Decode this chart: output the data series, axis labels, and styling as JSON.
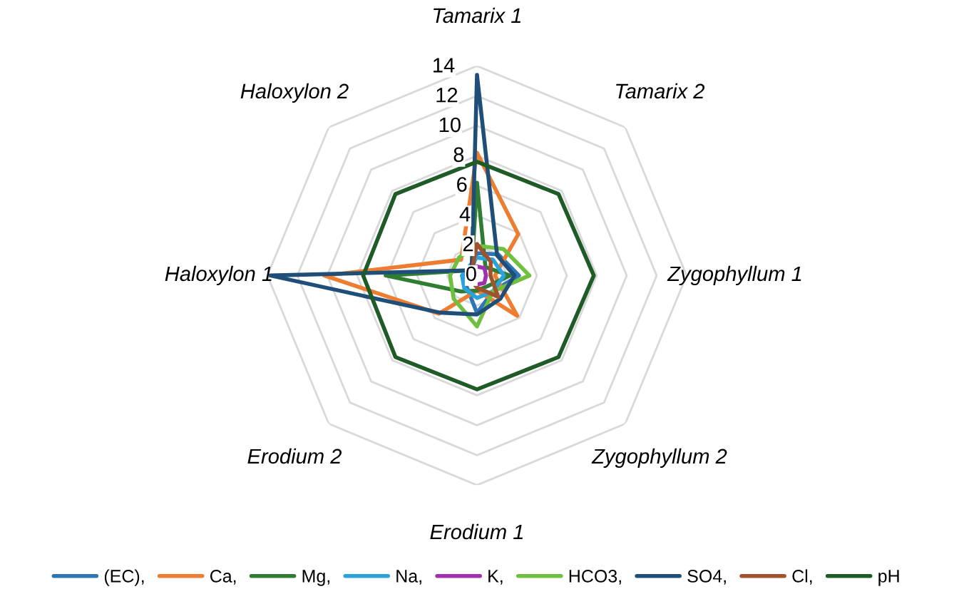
{
  "chart_data": {
    "type": "radar",
    "categories": [
      "Tamarix 1",
      "Tamarix 2",
      "Zygophyllum 1",
      "Zygophyllum 2",
      "Erodium 1",
      "Erodium 2",
      "Haloxylon 1",
      "Haloxylon 2"
    ],
    "ylim": [
      0,
      14
    ],
    "yticks": [
      0,
      2,
      4,
      6,
      8,
      10,
      12,
      14
    ],
    "grid": true,
    "legend": "bottom",
    "marker": "none",
    "line_style": "solid",
    "series": [
      {
        "name": "(EC),",
        "color": "#2e75b6",
        "values": [
          1.5,
          2.0,
          2.8,
          1.5,
          2.5,
          1.0,
          1.0,
          0.5
        ]
      },
      {
        "name": "Ca,",
        "color": "#ed7d31",
        "values": [
          8.2,
          3.9,
          1.2,
          3.8,
          1.0,
          3.6,
          10.2,
          1.5
        ]
      },
      {
        "name": "Mg,",
        "color": "#2e7d32",
        "values": [
          6.2,
          0.8,
          2.2,
          1.0,
          1.0,
          1.5,
          6.1,
          0.5
        ]
      },
      {
        "name": "Na,",
        "color": "#29a3d9",
        "values": [
          1.2,
          1.5,
          1.8,
          1.5,
          1.5,
          1.2,
          1.0,
          0.8
        ]
      },
      {
        "name": "K,",
        "color": "#a030b0",
        "values": [
          0.6,
          0.7,
          0.6,
          0.7,
          0.6,
          0.6,
          0.7,
          0.5
        ]
      },
      {
        "name": "HCO3,",
        "color": "#70c040",
        "values": [
          2.0,
          2.5,
          3.5,
          1.5,
          3.4,
          2.2,
          1.8,
          1.7
        ]
      },
      {
        "name": "SO4,",
        "color": "#1f4e79",
        "values": [
          13.4,
          1.9,
          2.5,
          2.2,
          2.6,
          3.5,
          13.8,
          0.5
        ]
      },
      {
        "name": "Cl,",
        "color": "#a0522d",
        "values": [
          2.1,
          1.3,
          0.9,
          2.0,
          0.8,
          0.5,
          0.3,
          0.5
        ]
      },
      {
        "name": "pH",
        "color": "#1e5b27",
        "values": [
          7.6,
          7.7,
          7.8,
          7.7,
          7.6,
          7.7,
          7.6,
          7.7
        ]
      }
    ]
  }
}
